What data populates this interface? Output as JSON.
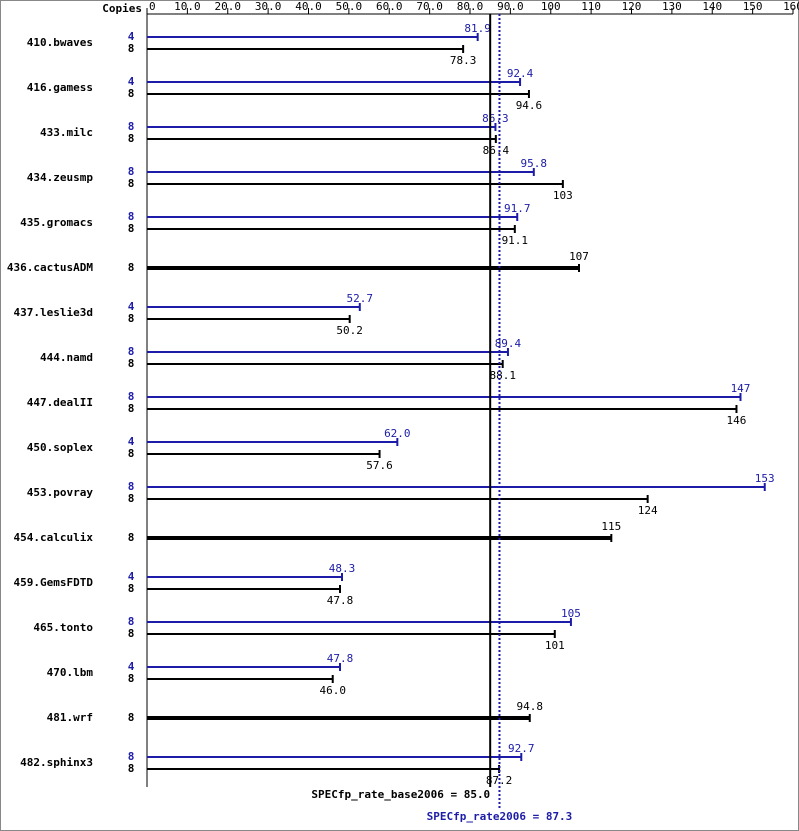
{
  "chart_data": {
    "type": "bar",
    "copies_label": "Copies",
    "categories": [
      "410.bwaves",
      "416.gamess",
      "433.milc",
      "434.zeusmp",
      "435.gromacs",
      "436.cactusADM",
      "437.leslie3d",
      "444.namd",
      "447.dealII",
      "450.soplex",
      "453.povray",
      "454.calculix",
      "459.GemsFDTD",
      "465.tonto",
      "470.lbm",
      "481.wrf",
      "482.sphinx3"
    ],
    "series": [
      {
        "color": "#1c1ca8",
        "copies": [
          4,
          4,
          8,
          8,
          8,
          null,
          4,
          8,
          8,
          4,
          8,
          null,
          4,
          8,
          4,
          null,
          8
        ],
        "values": [
          81.9,
          92.4,
          86.3,
          95.8,
          91.7,
          null,
          52.7,
          89.4,
          147,
          62.0,
          153,
          null,
          48.3,
          105,
          47.8,
          null,
          92.7
        ],
        "value_labels": [
          "81.9",
          "92.4",
          "86.3",
          "95.8",
          "91.7",
          null,
          "52.7",
          "89.4",
          "147",
          "62.0",
          "153",
          null,
          "48.3",
          "105",
          "47.8",
          null,
          "92.7"
        ]
      },
      {
        "color": "#000000",
        "copies": [
          8,
          8,
          8,
          8,
          8,
          8,
          8,
          8,
          8,
          8,
          8,
          8,
          8,
          8,
          8,
          8,
          8
        ],
        "values": [
          78.3,
          94.6,
          86.4,
          103,
          91.1,
          107,
          50.2,
          88.1,
          146,
          57.6,
          124,
          115,
          47.8,
          101,
          46.0,
          94.8,
          87.2
        ],
        "value_labels": [
          "78.3",
          "94.6",
          "86.4",
          "103",
          "91.1",
          "107",
          "50.2",
          "88.1",
          "146",
          "57.6",
          "124",
          "115",
          "47.8",
          "101",
          "46.0",
          "94.8",
          "87.2"
        ]
      }
    ],
    "xlim": [
      0,
      160
    ],
    "xticks": [
      0,
      {
        "value": 10,
        "label": "10.0"
      },
      {
        "value": 20,
        "label": "20.0"
      },
      {
        "value": 30,
        "label": "30.0"
      },
      {
        "value": 40,
        "label": "40.0"
      },
      {
        "value": 50,
        "label": "50.0"
      },
      {
        "value": 60,
        "label": "60.0"
      },
      {
        "value": 70,
        "label": "70.0"
      },
      {
        "value": 80,
        "label": "80.0"
      },
      {
        "value": 90,
        "label": "90.0"
      },
      100,
      110,
      120,
      130,
      140,
      150,
      160
    ],
    "reference_lines": [
      {
        "label": "SPECfp_rate_base2006 = 85.0",
        "value": 85.0,
        "color": "#000000",
        "style": "solid"
      },
      {
        "label": "SPECfp_rate2006 = 87.3",
        "value": 87.3,
        "color": "#1c1ca8",
        "style": "dotted"
      }
    ]
  }
}
